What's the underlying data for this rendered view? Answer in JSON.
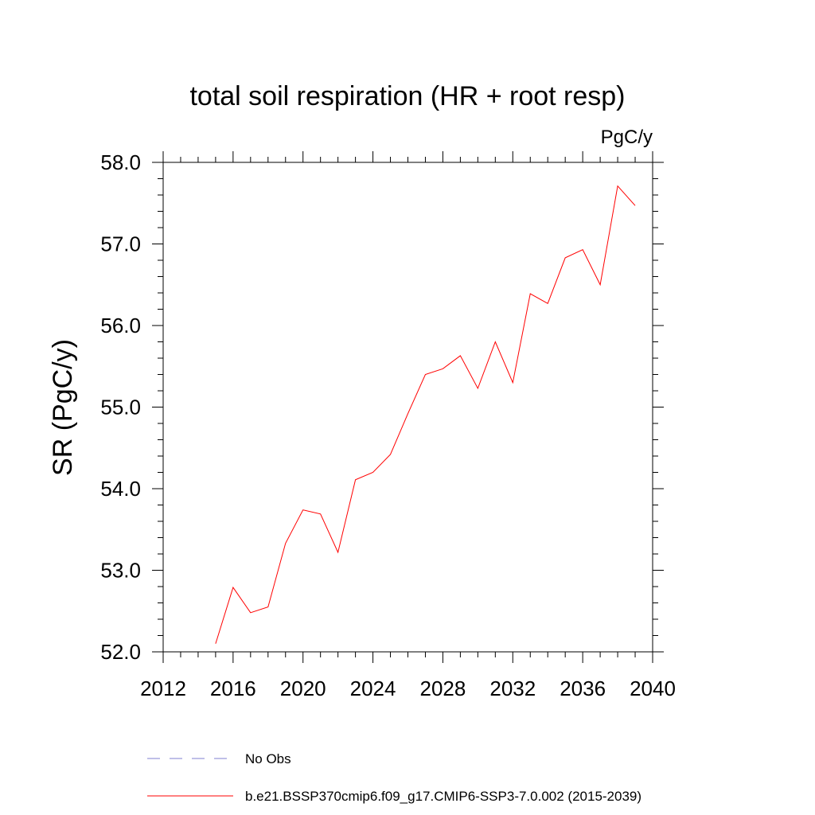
{
  "chart_data": {
    "type": "line",
    "title": "total soil respiration (HR + root resp)",
    "units": "PgC/y",
    "ylabel": "SR  (PgC/y)",
    "xlabel": "",
    "xlim": [
      2012,
      2040
    ],
    "ylim": [
      52.0,
      58.0
    ],
    "x_ticks": [
      "2012",
      "2016",
      "2020",
      "2024",
      "2028",
      "2032",
      "2036",
      "2040"
    ],
    "y_ticks": [
      "52.0",
      "53.0",
      "54.0",
      "55.0",
      "56.0",
      "57.0",
      "58.0"
    ],
    "grid": false,
    "legend_placement": "bottom",
    "legend": [
      {
        "label": "No Obs",
        "color": "#7f7fd0",
        "style": "dashed"
      },
      {
        "label": "b.e21.BSSP370cmip6.f09_g17.CMIP6-SSP3-7.0.002 (2015-2039)",
        "color": "#ff0000",
        "style": "solid"
      }
    ],
    "series": [
      {
        "name": "b.e21.BSSP370cmip6.f09_g17.CMIP6-SSP3-7.0.002 (2015-2039)",
        "color": "#ff0000",
        "x": [
          2015,
          2016,
          2017,
          2018,
          2019,
          2020,
          2021,
          2022,
          2023,
          2024,
          2025,
          2026,
          2027,
          2028,
          2029,
          2030,
          2031,
          2032,
          2033,
          2034,
          2035,
          2036,
          2037,
          2038,
          2039
        ],
        "y": [
          52.1,
          52.79,
          52.48,
          52.55,
          53.33,
          53.74,
          53.69,
          53.22,
          54.11,
          54.2,
          54.42,
          54.92,
          55.4,
          55.47,
          55.63,
          55.23,
          55.8,
          55.3,
          56.39,
          56.27,
          56.83,
          56.93,
          56.5,
          57.71,
          57.47
        ]
      }
    ]
  }
}
